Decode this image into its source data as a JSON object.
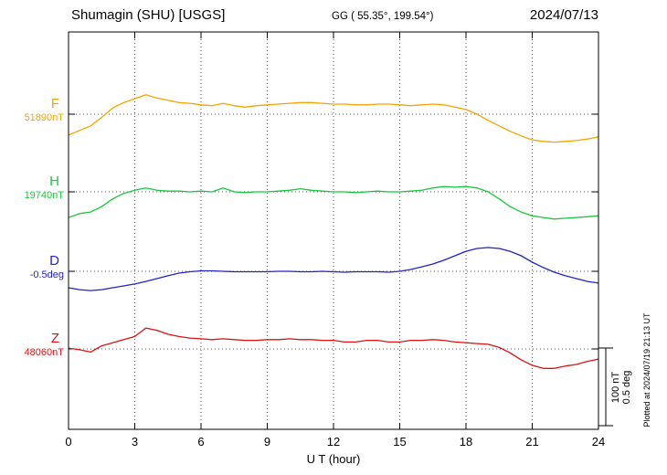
{
  "header": {
    "station": "Shumagin (SHU)  [USGS]",
    "coords": "GG ( 55.35°, 199.54°)",
    "date": "2024/07/13"
  },
  "footer_note": "Plotted at 2024/07/19 21:13 UT",
  "chart_data": {
    "type": "line",
    "title": "Shumagin (SHU) [USGS]",
    "subtitle": "GG ( 55.35°, 199.54°)",
    "date": "2024/07/13",
    "xlabel": "U T (hour)",
    "x_min": 0,
    "x_max": 24,
    "x_ticks": [
      0,
      3,
      6,
      9,
      12,
      15,
      18,
      21,
      24
    ],
    "x_step_hours": 0.5,
    "grid": "dotted vertical at 3h intervals, dotted horizontal at series baselines",
    "scale": {
      "nT_per_bar": 100,
      "deg_per_bar": 0.5,
      "bar_labels": [
        "100 nT",
        "0.5 deg"
      ]
    },
    "series": [
      {
        "name": "F",
        "label": "F",
        "baseline_label": "51890nT",
        "baseline_value": 51890,
        "unit": "nT",
        "color": "#f5a400",
        "offsets": [
          -27,
          -21,
          -15,
          -4,
          8,
          15,
          20,
          25,
          21,
          18,
          15,
          14,
          12,
          11,
          14,
          11,
          9,
          11,
          12,
          13,
          14,
          15,
          15,
          14,
          13,
          13,
          12,
          12,
          13,
          13,
          12,
          11,
          12,
          13,
          12,
          9,
          6,
          0,
          -8,
          -15,
          -22,
          -28,
          -33,
          -35,
          -36,
          -35,
          -34,
          -32,
          -29
        ]
      },
      {
        "name": "H",
        "label": "H",
        "baseline_label": "19740nT",
        "baseline_value": 19740,
        "unit": "nT",
        "color": "#18c83c",
        "offsets": [
          -33,
          -28,
          -26,
          -19,
          -9,
          -2,
          2,
          5,
          2,
          1,
          1,
          0,
          1,
          0,
          5,
          0,
          -1,
          0,
          0,
          1,
          2,
          4,
          2,
          1,
          0,
          0,
          -1,
          0,
          1,
          0,
          0,
          1,
          2,
          5,
          7,
          6,
          7,
          5,
          0,
          -9,
          -19,
          -26,
          -31,
          -33,
          -35,
          -34,
          -33,
          -32,
          -31
        ]
      },
      {
        "name": "D",
        "label": "D",
        "baseline_label": "-0.5deg",
        "baseline_value": -0.5,
        "unit": "deg",
        "color": "#2222cc",
        "offsets": [
          -0.106,
          -0.118,
          -0.124,
          -0.118,
          -0.106,
          -0.094,
          -0.082,
          -0.065,
          -0.047,
          -0.029,
          -0.012,
          -0.003,
          0.003,
          0.003,
          0.0,
          -0.003,
          -0.003,
          -0.003,
          -0.003,
          0.0,
          0.0,
          -0.003,
          -0.003,
          0.0,
          -0.003,
          -0.006,
          -0.003,
          -0.003,
          -0.003,
          -0.006,
          0.0,
          0.012,
          0.029,
          0.047,
          0.071,
          0.1,
          0.129,
          0.147,
          0.153,
          0.147,
          0.129,
          0.1,
          0.059,
          0.024,
          -0.006,
          -0.029,
          -0.047,
          -0.065,
          -0.076
        ]
      },
      {
        "name": "Z",
        "label": "Z",
        "baseline_label": "48060nT",
        "baseline_value": 48060,
        "unit": "nT",
        "color": "#dd1111",
        "offsets": [
          1,
          -1,
          -4,
          4,
          8,
          12,
          16,
          27,
          24,
          19,
          16,
          14,
          13,
          12,
          13,
          12,
          11,
          11,
          12,
          12,
          13,
          12,
          12,
          11,
          11,
          9,
          9,
          11,
          11,
          9,
          9,
          11,
          11,
          12,
          11,
          9,
          8,
          7,
          6,
          2,
          -5,
          -14,
          -21,
          -25,
          -25,
          -22,
          -20,
          -16,
          -13
        ]
      }
    ]
  }
}
